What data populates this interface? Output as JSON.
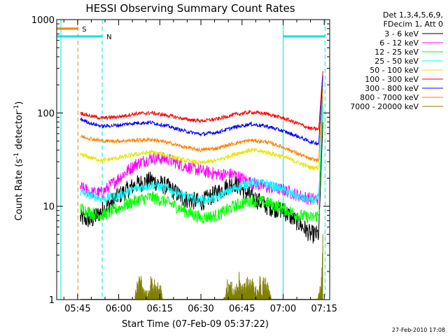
{
  "chart_data": {
    "type": "line",
    "title": "HESSI Observing Summary Count Rates",
    "xlabel": "Start Time (07-Feb-09 05:37:22)",
    "ylabel_main": "Count Rate (s",
    "ylabel_sup1": "-1",
    "ylabel_mid": " detector",
    "ylabel_sup2": "-1",
    "ylabel_end": ")",
    "footer": "27-Feb-2010 17:08",
    "yscale": "log",
    "ylim": [
      1,
      1000
    ],
    "xlim_minutes": [
      5.62,
      15.0,
      22.5
    ],
    "xlim_clock": [
      "05:37:22",
      "07:17:00"
    ],
    "x_ticks": [
      {
        "minute": 345,
        "label": "05:45"
      },
      {
        "minute": 360,
        "label": "06:00"
      },
      {
        "minute": 375,
        "label": "06:15"
      },
      {
        "minute": 390,
        "label": "06:30"
      },
      {
        "minute": 405,
        "label": "06:45"
      },
      {
        "minute": 420,
        "label": "07:00"
      },
      {
        "minute": 435,
        "label": "07:15"
      }
    ],
    "y_ticks": [
      {
        "value": 1,
        "label": "1"
      },
      {
        "value": 10,
        "label": "10"
      },
      {
        "value": 100,
        "label": "100"
      },
      {
        "value": 1000,
        "label": "1000"
      }
    ],
    "legend_header": [
      "Det 1,3,4,5,6,9,",
      "FDecim 1, Att 0"
    ],
    "legend_position": "top-right",
    "flags": [
      {
        "label": "S",
        "color": "#ff8000",
        "start": 337.4,
        "end": 345.1,
        "level": 800
      },
      {
        "label": "N",
        "color": "#00e5e5",
        "start": 337.4,
        "end": 354.0,
        "level": 660
      }
    ],
    "vlines": [
      {
        "minute": 345.1,
        "color": "#ff8000",
        "style": "dashed"
      },
      {
        "minute": 354.0,
        "color": "#00e5e5",
        "style": "dashed"
      },
      {
        "minute": 338.9,
        "color": "#00e5e5",
        "style": "solid"
      },
      {
        "minute": 420.0,
        "color": "#00e5e5",
        "style": "solid"
      },
      {
        "minute": 435.3,
        "color": "#00e5e5",
        "style": "dashed"
      }
    ],
    "series": [
      {
        "name": "3 - 6 keV",
        "color": "#000000",
        "x": [
          346,
          350,
          354,
          360,
          366,
          372,
          378,
          384,
          390,
          396,
          402,
          408,
          414,
          420,
          426,
          430,
          433,
          434.5
        ],
        "y": [
          7.5,
          7,
          9,
          13,
          17,
          19,
          16,
          12,
          11,
          14,
          18,
          13,
          10,
          9,
          6.5,
          5,
          5,
          80
        ]
      },
      {
        "name": "6 - 12 keV",
        "color": "#ff00ff",
        "x": [
          346,
          350,
          354,
          360,
          366,
          372,
          378,
          384,
          390,
          396,
          402,
          408,
          414,
          420,
          426,
          430,
          433,
          434.5
        ],
        "y": [
          16,
          14,
          14,
          20,
          28,
          33,
          32,
          27,
          24,
          22,
          22,
          18,
          16,
          15,
          13,
          12,
          12,
          150
        ]
      },
      {
        "name": "12 - 25 keV",
        "color": "#00ff00",
        "x": [
          346,
          350,
          354,
          360,
          366,
          372,
          378,
          384,
          390,
          396,
          402,
          408,
          414,
          420,
          426,
          430,
          433,
          434.5
        ],
        "y": [
          9.5,
          8.5,
          8,
          9.5,
          11.5,
          12.5,
          11,
          9,
          7.5,
          8,
          10,
          11.5,
          11,
          9.5,
          8,
          7.5,
          8,
          120
        ]
      },
      {
        "name": "25 - 50 keV",
        "color": "#00ffff",
        "x": [
          346,
          350,
          354,
          360,
          366,
          372,
          378,
          384,
          390,
          396,
          402,
          408,
          414,
          420,
          426,
          430,
          433,
          434.5
        ],
        "y": [
          14,
          13,
          12,
          13,
          15.5,
          17,
          15.5,
          13,
          11.5,
          12.5,
          15.5,
          18,
          17.5,
          15,
          12.5,
          11.5,
          12,
          150
        ]
      },
      {
        "name": "50 - 100 keV",
        "color": "#e5e500",
        "x": [
          346,
          350,
          354,
          360,
          366,
          372,
          378,
          384,
          390,
          396,
          402,
          408,
          414,
          420,
          426,
          430,
          433,
          434.5
        ],
        "y": [
          36,
          33,
          31,
          33,
          36,
          38,
          35,
          31,
          29,
          31,
          36,
          40,
          38,
          34,
          29,
          26,
          26,
          200
        ]
      },
      {
        "name": "100 - 300 keV",
        "color": "#ff0000",
        "x": [
          346,
          350,
          354,
          360,
          366,
          372,
          378,
          384,
          390,
          396,
          402,
          408,
          414,
          420,
          426,
          430,
          433,
          434.5
        ],
        "y": [
          100,
          92,
          88,
          91,
          98,
          100,
          94,
          86,
          82,
          86,
          96,
          102,
          98,
          88,
          76,
          68,
          67,
          280
        ]
      },
      {
        "name": "300 - 800 keV",
        "color": "#0000ff",
        "x": [
          346,
          350,
          354,
          360,
          366,
          372,
          378,
          384,
          390,
          396,
          402,
          408,
          414,
          420,
          426,
          430,
          433,
          434.5
        ],
        "y": [
          86,
          77,
          72,
          74,
          78,
          79,
          72,
          64,
          59,
          62,
          70,
          76,
          72,
          64,
          55,
          49,
          47,
          250
        ]
      },
      {
        "name": "800 - 7000 keV",
        "color": "#ff8000",
        "x": [
          346,
          350,
          354,
          360,
          366,
          372,
          378,
          384,
          390,
          396,
          402,
          408,
          414,
          420,
          426,
          430,
          433,
          434.5
        ],
        "y": [
          56,
          53,
          50,
          50,
          51,
          52,
          48,
          43,
          40,
          42,
          47,
          51,
          49,
          43,
          36,
          32,
          31,
          180
        ]
      },
      {
        "name": "7000 - 20000 keV",
        "color": "#808000",
        "x": [
          346,
          365,
          366,
          368,
          370,
          372,
          374,
          375,
          376,
          398,
          400,
          402,
          404,
          406,
          408,
          410,
          412,
          414,
          415,
          416,
          432,
          433,
          434,
          434.5
        ],
        "y": [
          1,
          1,
          1.4,
          2,
          1.3,
          1.9,
          1.5,
          2,
          1,
          1,
          1.9,
          1.4,
          2,
          1.6,
          2,
          1.5,
          1.9,
          1.7,
          1.3,
          1,
          1,
          1.2,
          2,
          5
        ]
      }
    ]
  }
}
